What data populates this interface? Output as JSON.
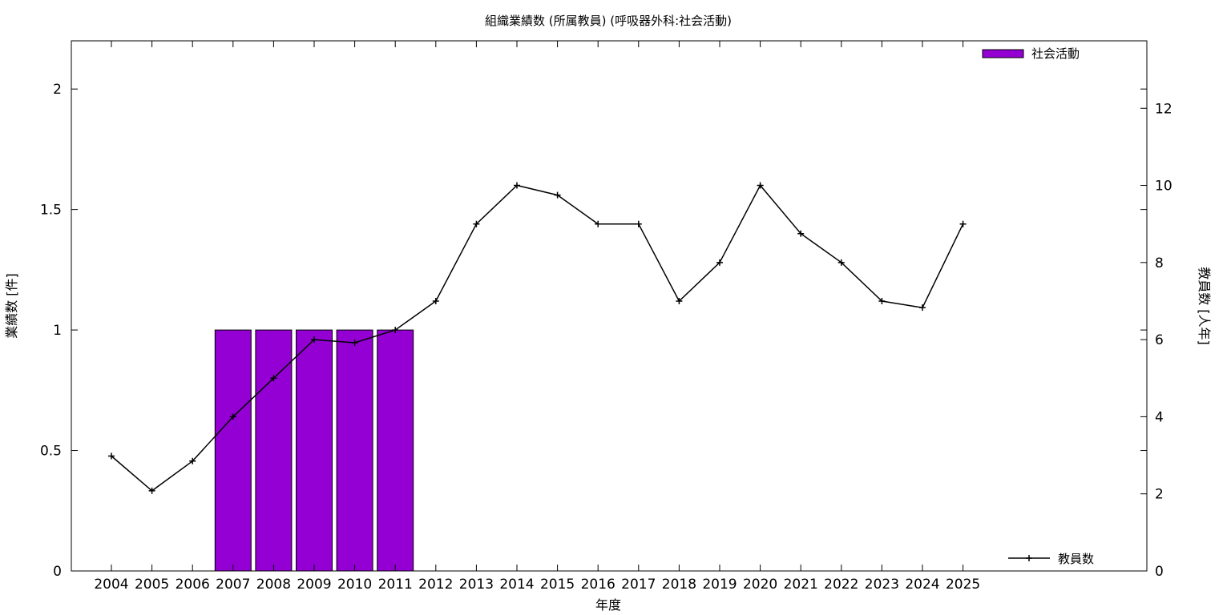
{
  "chart_data": {
    "type": "bar",
    "title": "組織業績数 (所属教員) (呼吸器外科:社会活動)",
    "xlabel": "年度",
    "ylabel": "業績数 [件]",
    "y2label": "教員数 [人年]",
    "categories": [
      "2004",
      "2005",
      "2006",
      "2007",
      "2008",
      "2009",
      "2010",
      "2011",
      "2012",
      "2013",
      "2014",
      "2015",
      "2016",
      "2017",
      "2018",
      "2019",
      "2020",
      "2021",
      "2022",
      "2023",
      "2024",
      "2025"
    ],
    "ylim": [
      0,
      2.2
    ],
    "y2lim": [
      0,
      13.75
    ],
    "yticks": [
      0,
      0.5,
      1,
      1.5,
      2
    ],
    "ytick_labels": [
      "0",
      "0.5",
      "1",
      "1.5",
      "2"
    ],
    "y2ticks": [
      0,
      2,
      4,
      6,
      8,
      10,
      12
    ],
    "y2tick_labels": [
      "0",
      "2",
      "4",
      "6",
      "8",
      "10",
      "12"
    ],
    "grid": false,
    "series": [
      {
        "name": "社会活動",
        "type": "bar",
        "axis": "left",
        "color": "#9400d3",
        "values": [
          0,
          0,
          0,
          1,
          1,
          1,
          1,
          1,
          0,
          0,
          0,
          0,
          0,
          0,
          0,
          0,
          0,
          0,
          0,
          0,
          0,
          0
        ]
      },
      {
        "name": "教員数",
        "type": "line",
        "axis": "right",
        "color": "#000000",
        "marker": "plus",
        "values": [
          2.98,
          2.08,
          2.85,
          4.0,
          5.0,
          6.0,
          5.92,
          6.25,
          7.0,
          9.0,
          10.0,
          9.75,
          9.0,
          9.0,
          7.0,
          8.0,
          10.0,
          8.75,
          8.0,
          7.0,
          6.83,
          9.0
        ]
      }
    ],
    "legend": [
      {
        "label": "社会活動",
        "position": "top-right",
        "kind": "bar"
      },
      {
        "label": "教員数",
        "position": "bottom-right",
        "kind": "line"
      }
    ]
  }
}
